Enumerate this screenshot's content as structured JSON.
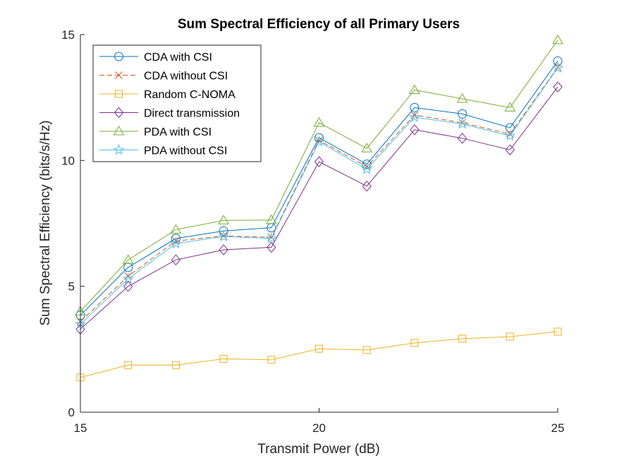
{
  "chart_data": {
    "type": "line",
    "title": "Sum Spectral Efficiency of all Primary Users",
    "xlabel": "Transmit Power (dB)",
    "ylabel": "Sum Spectral Efficiency (bits/s/Hz)",
    "xlim": [
      15,
      25
    ],
    "ylim": [
      0,
      15
    ],
    "xticks": [
      15,
      20,
      25
    ],
    "yticks": [
      0,
      5,
      10,
      15
    ],
    "grid": false,
    "legend_position": "top-left",
    "x": [
      15,
      16,
      17,
      18,
      19,
      20,
      21,
      22,
      23,
      24,
      25
    ],
    "series": [
      {
        "name": "CDA with CSI",
        "color": "#0072BD",
        "marker": "circle",
        "dash": "solid",
        "values": [
          3.85,
          5.75,
          6.9,
          7.2,
          7.33,
          10.9,
          9.85,
          12.1,
          11.85,
          11.3,
          13.95
        ]
      },
      {
        "name": "CDA without CSI",
        "color": "#D95319",
        "marker": "x",
        "dash": "dashed",
        "values": [
          3.6,
          5.4,
          6.8,
          7.0,
          6.95,
          10.8,
          9.75,
          11.8,
          11.5,
          11.05,
          13.7
        ]
      },
      {
        "name": "Random C-NOMA",
        "color": "#EDB120",
        "marker": "square",
        "dash": "solid",
        "values": [
          1.38,
          1.87,
          1.87,
          2.12,
          2.08,
          2.52,
          2.47,
          2.75,
          2.92,
          3.0,
          3.2
        ]
      },
      {
        "name": "Direct transmission",
        "color": "#7E2F8E",
        "marker": "diamond",
        "dash": "solid",
        "values": [
          3.3,
          5.0,
          6.05,
          6.45,
          6.55,
          9.95,
          8.98,
          11.22,
          10.88,
          10.42,
          12.92
        ]
      },
      {
        "name": "PDA with CSI",
        "color": "#77AC30",
        "marker": "triangle",
        "dash": "solid",
        "values": [
          4.0,
          6.05,
          7.25,
          7.62,
          7.63,
          11.5,
          10.48,
          12.8,
          12.45,
          12.1,
          14.78
        ]
      },
      {
        "name": "PDA without CSI",
        "color": "#4DBEEE",
        "marker": "star",
        "dash": "solid",
        "values": [
          3.5,
          5.3,
          6.7,
          6.98,
          6.9,
          10.75,
          9.65,
          11.72,
          11.45,
          10.98,
          13.68
        ]
      }
    ]
  }
}
